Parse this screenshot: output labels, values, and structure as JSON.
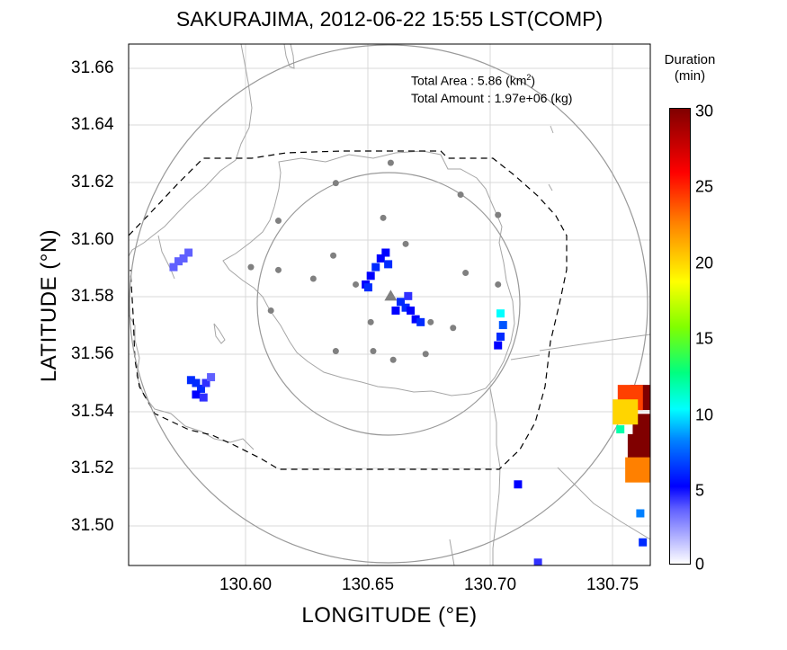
{
  "title": "SAKURAJIMA, 2012-06-22 15:55 LST(COMP)",
  "xlabel": "LONGITUDE (°E)",
  "ylabel": "LATITUDE (°N)",
  "stats": {
    "area_label": "Total Area   : 5.86 (km",
    "area_sup": "2",
    "area_close": ")",
    "amount_label": "Total Amount : 1.97e+06 (kg)"
  },
  "colorbar": {
    "title_line1": "Duration",
    "title_line2": "(min)",
    "ticks": [
      "30",
      "25",
      "20",
      "15",
      "10",
      "5",
      "0"
    ]
  },
  "colors": {
    "grid": "#d9d9d9",
    "coast": "#a6a6a6",
    "circle": "#999999",
    "station": "#808080",
    "echo_dark": "#0000ff",
    "echo_light": "#6060ff",
    "echo_cyan": "#00c8ff",
    "echo_red": "#800000"
  },
  "chart_data": {
    "type": "heatmap",
    "xlim": [
      130.553,
      130.762
    ],
    "ylim": [
      31.487,
      31.667
    ],
    "xticks": [
      "130.60",
      "130.65",
      "130.70",
      "130.75"
    ],
    "yticks": [
      "31.66",
      "31.64",
      "31.62",
      "31.60",
      "31.58",
      "31.56",
      "31.54",
      "31.52",
      "31.50"
    ],
    "grid": true,
    "value_range": [
      0,
      30
    ],
    "vent": {
      "lon": 130.658,
      "lat": 31.58
    },
    "stations": [
      {
        "lon": 130.658,
        "lat": 31.626
      },
      {
        "lon": 130.636,
        "lat": 31.619
      },
      {
        "lon": 130.686,
        "lat": 31.615
      },
      {
        "lon": 130.613,
        "lat": 31.606
      },
      {
        "lon": 130.655,
        "lat": 31.607
      },
      {
        "lon": 130.701,
        "lat": 31.608
      },
      {
        "lon": 130.664,
        "lat": 31.598
      },
      {
        "lon": 130.602,
        "lat": 31.59
      },
      {
        "lon": 130.613,
        "lat": 31.589
      },
      {
        "lon": 130.635,
        "lat": 31.594
      },
      {
        "lon": 130.627,
        "lat": 31.586
      },
      {
        "lon": 130.644,
        "lat": 31.584
      },
      {
        "lon": 130.688,
        "lat": 31.588
      },
      {
        "lon": 130.701,
        "lat": 31.584
      },
      {
        "lon": 130.61,
        "lat": 31.575
      },
      {
        "lon": 130.65,
        "lat": 31.571
      },
      {
        "lon": 130.674,
        "lat": 31.571
      },
      {
        "lon": 130.683,
        "lat": 31.569
      },
      {
        "lon": 130.636,
        "lat": 31.561
      },
      {
        "lon": 130.651,
        "lat": 31.561
      },
      {
        "lon": 130.659,
        "lat": 31.558
      },
      {
        "lon": 130.672,
        "lat": 31.56
      }
    ],
    "echo_cells": [
      {
        "lon": 130.571,
        "lat": 31.59,
        "v": 3
      },
      {
        "lon": 130.573,
        "lat": 31.592,
        "v": 3
      },
      {
        "lon": 130.575,
        "lat": 31.593,
        "v": 3
      },
      {
        "lon": 130.577,
        "lat": 31.595,
        "v": 3
      },
      {
        "lon": 130.578,
        "lat": 31.551,
        "v": 6
      },
      {
        "lon": 130.58,
        "lat": 31.55,
        "v": 6
      },
      {
        "lon": 130.582,
        "lat": 31.548,
        "v": 6
      },
      {
        "lon": 130.58,
        "lat": 31.546,
        "v": 5
      },
      {
        "lon": 130.584,
        "lat": 31.55,
        "v": 4
      },
      {
        "lon": 130.586,
        "lat": 31.552,
        "v": 3
      },
      {
        "lon": 130.583,
        "lat": 31.545,
        "v": 4
      },
      {
        "lon": 130.654,
        "lat": 31.593,
        "v": 5
      },
      {
        "lon": 130.656,
        "lat": 31.595,
        "v": 5
      },
      {
        "lon": 130.652,
        "lat": 31.59,
        "v": 6
      },
      {
        "lon": 130.657,
        "lat": 31.591,
        "v": 6
      },
      {
        "lon": 130.65,
        "lat": 31.587,
        "v": 5
      },
      {
        "lon": 130.648,
        "lat": 31.584,
        "v": 5
      },
      {
        "lon": 130.649,
        "lat": 31.583,
        "v": 6
      },
      {
        "lon": 130.662,
        "lat": 31.578,
        "v": 6
      },
      {
        "lon": 130.664,
        "lat": 31.576,
        "v": 6
      },
      {
        "lon": 130.666,
        "lat": 31.575,
        "v": 5
      },
      {
        "lon": 130.668,
        "lat": 31.572,
        "v": 5
      },
      {
        "lon": 130.67,
        "lat": 31.571,
        "v": 6
      },
      {
        "lon": 130.665,
        "lat": 31.58,
        "v": 4
      },
      {
        "lon": 130.66,
        "lat": 31.575,
        "v": 5
      },
      {
        "lon": 130.702,
        "lat": 31.574,
        "v": 10
      },
      {
        "lon": 130.703,
        "lat": 31.57,
        "v": 7
      },
      {
        "lon": 130.702,
        "lat": 31.566,
        "v": 6
      },
      {
        "lon": 130.701,
        "lat": 31.563,
        "v": 5
      },
      {
        "lon": 130.709,
        "lat": 31.515,
        "v": 5
      },
      {
        "lon": 130.759,
        "lat": 31.545,
        "v": 30
      },
      {
        "lon": 130.76,
        "lat": 31.535,
        "v": 30
      },
      {
        "lon": 130.758,
        "lat": 31.528,
        "v": 30
      },
      {
        "lon": 130.757,
        "lat": 31.52,
        "v": 22
      },
      {
        "lon": 130.754,
        "lat": 31.545,
        "v": 24
      },
      {
        "lon": 130.752,
        "lat": 31.54,
        "v": 20
      },
      {
        "lon": 130.75,
        "lat": 31.534,
        "v": 12
      },
      {
        "lon": 130.758,
        "lat": 31.505,
        "v": 8
      },
      {
        "lon": 130.759,
        "lat": 31.495,
        "v": 6
      },
      {
        "lon": 130.717,
        "lat": 31.488,
        "v": 4
      }
    ]
  }
}
